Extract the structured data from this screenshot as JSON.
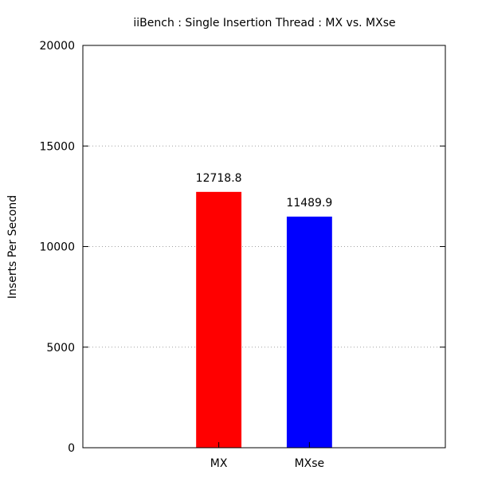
{
  "chart_data": {
    "type": "bar",
    "title": "iiBench : Single Insertion Thread : MX vs. MXse",
    "xlabel": "",
    "ylabel": "Inserts Per Second",
    "categories": [
      "MX",
      "MXse"
    ],
    "values": [
      12718.8,
      11489.9
    ],
    "value_labels": [
      "12718.8",
      "11489.9"
    ],
    "colors": [
      "#ff0000",
      "#0000ff"
    ],
    "ylim": [
      0,
      20000
    ],
    "yticks": [
      0,
      5000,
      10000,
      15000,
      20000
    ],
    "ytick_labels": [
      "0",
      "5000",
      "10000",
      "15000",
      "20000"
    ],
    "grid": "horizontal dotted",
    "legend": "none"
  }
}
